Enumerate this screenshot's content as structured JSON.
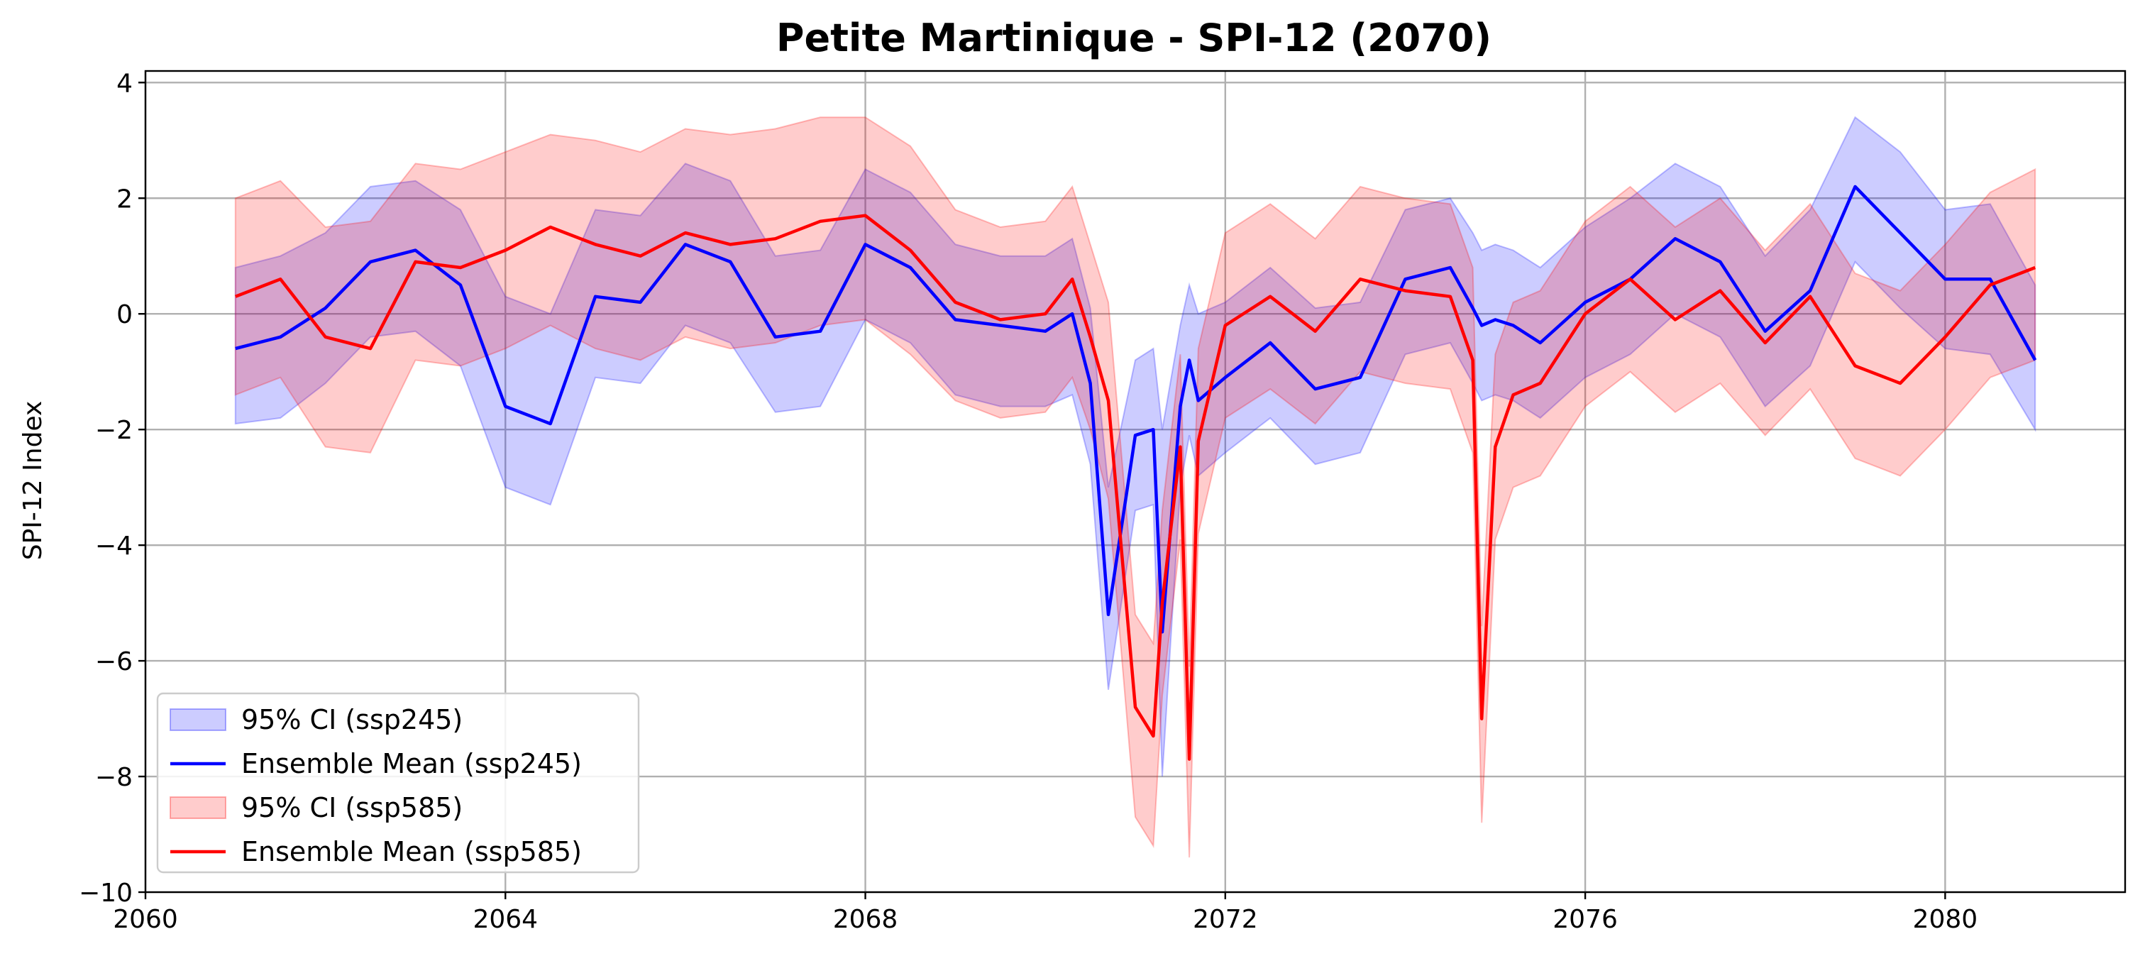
{
  "chart_data": {
    "type": "line",
    "title": "Petite Martinique - SPI-12 (2070)",
    "xlabel": "",
    "ylabel": "SPI-12 Index",
    "xlim": [
      2060.0,
      2082.0
    ],
    "ylim": [
      -10.0,
      4.2
    ],
    "x_ticks": [
      2060,
      2064,
      2068,
      2072,
      2076,
      2080
    ],
    "y_ticks": [
      4,
      2,
      0,
      -2,
      -4,
      -6,
      -8,
      -10
    ],
    "y_tick_labels": [
      "4",
      "2",
      "0",
      "−2",
      "−4",
      "−6",
      "−8",
      "−10"
    ],
    "grid": true,
    "legend_position": "lower-left",
    "legend": [
      {
        "label": "95% CI (ssp245)",
        "kind": "band",
        "series": 0
      },
      {
        "label": "Ensemble Mean (ssp245)",
        "kind": "line",
        "series": 0
      },
      {
        "label": "95% CI (ssp585)",
        "kind": "band",
        "series": 1
      },
      {
        "label": "Ensemble Mean (ssp585)",
        "kind": "line",
        "series": 1
      }
    ],
    "x": [
      2061.0,
      2061.5,
      2062.0,
      2062.5,
      2063.0,
      2063.5,
      2064.0,
      2064.5,
      2065.0,
      2065.5,
      2066.0,
      2066.5,
      2067.0,
      2067.5,
      2068.0,
      2068.5,
      2069.0,
      2069.5,
      2070.0,
      2070.3,
      2070.5,
      2070.7,
      2071.0,
      2071.2,
      2071.3,
      2071.5,
      2071.6,
      2071.7,
      2072.0,
      2072.5,
      2073.0,
      2073.5,
      2074.0,
      2074.5,
      2074.75,
      2074.85,
      2075.0,
      2075.2,
      2075.5,
      2076.0,
      2076.5,
      2077.0,
      2077.5,
      2078.0,
      2078.5,
      2079.0,
      2079.5,
      2080.0,
      2080.5,
      2081.0
    ],
    "series": [
      {
        "color": "#0000ff",
        "band_color": "#0000ff",
        "mean": [
          -0.6,
          -0.4,
          0.1,
          0.9,
          1.1,
          0.5,
          -1.6,
          -1.9,
          0.3,
          0.2,
          1.2,
          0.9,
          -0.4,
          -0.3,
          1.2,
          0.8,
          -0.1,
          -0.2,
          -0.3,
          0.0,
          -1.2,
          -5.2,
          -2.1,
          -2.0,
          -5.5,
          -1.6,
          -0.8,
          -1.5,
          -1.1,
          -0.5,
          -1.3,
          -1.1,
          0.6,
          0.8,
          0.1,
          -0.2,
          -0.1,
          -0.2,
          -0.5,
          0.2,
          0.6,
          1.3,
          0.9,
          -0.3,
          0.4,
          2.2,
          1.4,
          0.6,
          0.6,
          -0.8
        ],
        "upper": [
          0.8,
          1.0,
          1.4,
          2.2,
          2.3,
          1.8,
          0.3,
          0.0,
          1.8,
          1.7,
          2.6,
          2.3,
          1.0,
          1.1,
          2.5,
          2.1,
          1.2,
          1.0,
          1.0,
          1.3,
          0.1,
          -3.0,
          -0.8,
          -0.6,
          -2.0,
          -0.2,
          0.5,
          0.0,
          0.2,
          0.8,
          0.1,
          0.2,
          1.8,
          2.0,
          1.4,
          1.1,
          1.2,
          1.1,
          0.8,
          1.5,
          2.0,
          2.6,
          2.2,
          1.0,
          1.8,
          3.4,
          2.8,
          1.8,
          1.9,
          0.5
        ],
        "lower": [
          -1.9,
          -1.8,
          -1.2,
          -0.4,
          -0.3,
          -0.9,
          -3.0,
          -3.3,
          -1.1,
          -1.2,
          -0.2,
          -0.5,
          -1.7,
          -1.6,
          -0.1,
          -0.5,
          -1.4,
          -1.6,
          -1.6,
          -1.4,
          -2.6,
          -6.5,
          -3.4,
          -3.3,
          -8.0,
          -3.0,
          -2.1,
          -2.8,
          -2.4,
          -1.8,
          -2.6,
          -2.4,
          -0.7,
          -0.5,
          -1.2,
          -1.5,
          -1.4,
          -1.5,
          -1.8,
          -1.1,
          -0.7,
          0.0,
          -0.4,
          -1.6,
          -0.9,
          0.9,
          0.1,
          -0.6,
          -0.7,
          -2.0
        ]
      },
      {
        "color": "#ff0000",
        "band_color": "#ff0000",
        "mean": [
          0.3,
          0.6,
          -0.4,
          -0.6,
          0.9,
          0.8,
          1.1,
          1.5,
          1.2,
          1.0,
          1.4,
          1.2,
          1.3,
          1.6,
          1.7,
          1.1,
          0.2,
          -0.1,
          0.0,
          0.6,
          -0.4,
          -1.5,
          -6.8,
          -7.3,
          -5.0,
          -2.3,
          -7.7,
          -2.2,
          -0.2,
          0.3,
          -0.3,
          0.6,
          0.4,
          0.3,
          -0.8,
          -7.0,
          -2.3,
          -1.4,
          -1.2,
          0.0,
          0.6,
          -0.1,
          0.4,
          -0.5,
          0.3,
          -0.9,
          -1.2,
          -0.4,
          0.5,
          0.8
        ],
        "upper": [
          2.0,
          2.3,
          1.5,
          1.6,
          2.6,
          2.5,
          2.8,
          3.1,
          3.0,
          2.8,
          3.2,
          3.1,
          3.2,
          3.4,
          3.4,
          2.9,
          1.8,
          1.5,
          1.6,
          2.2,
          1.2,
          0.2,
          -5.2,
          -5.7,
          -3.4,
          -0.7,
          -6.1,
          -0.6,
          1.4,
          1.9,
          1.3,
          2.2,
          2.0,
          1.9,
          0.8,
          -5.4,
          -0.7,
          0.2,
          0.4,
          1.6,
          2.2,
          1.5,
          2.0,
          1.1,
          1.9,
          0.7,
          0.4,
          1.2,
          2.1,
          2.5
        ],
        "lower": [
          -1.4,
          -1.1,
          -2.3,
          -2.4,
          -0.8,
          -0.9,
          -0.6,
          -0.2,
          -0.6,
          -0.8,
          -0.4,
          -0.6,
          -0.5,
          -0.2,
          -0.1,
          -0.7,
          -1.5,
          -1.8,
          -1.7,
          -1.1,
          -2.0,
          -3.2,
          -8.7,
          -9.2,
          -6.6,
          -3.9,
          -9.4,
          -3.8,
          -1.8,
          -1.3,
          -1.9,
          -1.0,
          -1.2,
          -1.3,
          -2.4,
          -8.8,
          -3.9,
          -3.0,
          -2.8,
          -1.6,
          -1.0,
          -1.7,
          -1.2,
          -2.1,
          -1.3,
          -2.5,
          -2.8,
          -2.0,
          -1.1,
          -0.8
        ]
      }
    ]
  }
}
